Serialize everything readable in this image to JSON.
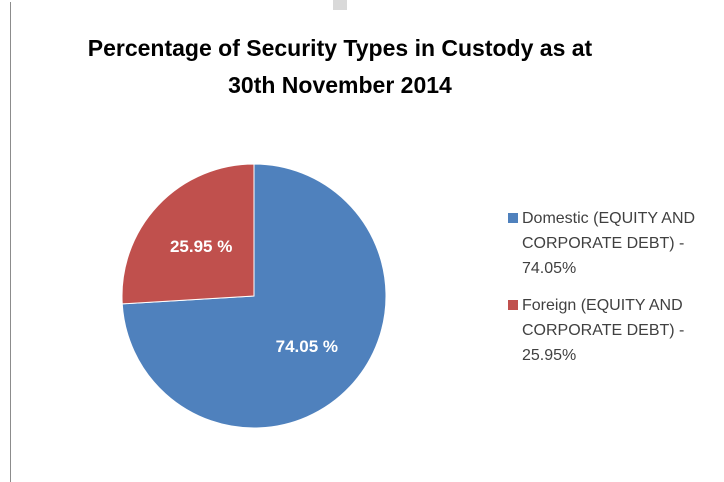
{
  "chart_data": {
    "type": "pie",
    "title_lines": [
      "Percentage of Security Types in Custody as at",
      "30th November 2014"
    ],
    "slices": [
      {
        "label": "Domestic (EQUITY AND CORPORATE DEBT) - 74.05%",
        "value": 74.05,
        "data_label": "74.05 %",
        "color": "#4f81bd"
      },
      {
        "label": "Foreign (EQUITY AND CORPORATE DEBT) - 25.95%",
        "value": 25.95,
        "data_label": "25.95 %",
        "color": "#c0504d"
      }
    ],
    "start_angle_deg": 0,
    "direction": "clockwise",
    "legend_position": "right"
  }
}
